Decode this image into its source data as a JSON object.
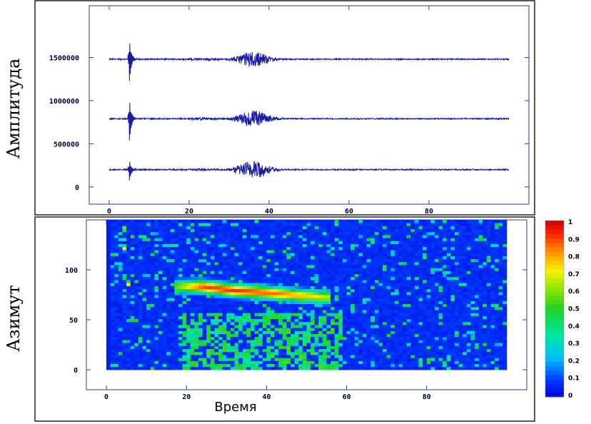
{
  "chart_data": [
    {
      "type": "line",
      "ylabel": "Амплитуда",
      "xlabel": "",
      "xlim": [
        -5,
        105
      ],
      "ylim": [
        -200000,
        2100000
      ],
      "xticks": [
        0,
        20,
        40,
        60,
        80
      ],
      "yticks": [
        0,
        500000,
        1000000,
        1500000
      ],
      "grid": false,
      "series_color": "#1a1aa6",
      "series": [
        {
          "baseline": 1480000,
          "first_arrival_time": 5,
          "first_arrival_peak": 320000,
          "burst_center": 36,
          "burst_amplitude": 90000
        },
        {
          "baseline": 790000,
          "first_arrival_time": 5,
          "first_arrival_peak": 330000,
          "burst_center": 36,
          "burst_amplitude": 100000
        },
        {
          "baseline": 200000,
          "first_arrival_time": 5,
          "first_arrival_peak": 160000,
          "burst_center": 36,
          "burst_amplitude": 110000
        }
      ],
      "time_range": [
        0,
        100
      ]
    },
    {
      "type": "heatmap",
      "xlabel": "Время",
      "ylabel": "Азимут",
      "xlim": [
        -5,
        105
      ],
      "ylim": [
        -20,
        150
      ],
      "xticks": [
        0,
        20,
        40,
        60,
        80
      ],
      "yticks": [
        0,
        50,
        100
      ],
      "value_range": [
        0,
        1
      ],
      "colorbar_ticks": [
        0,
        0.1,
        0.2,
        0.3,
        0.4,
        0.5,
        0.6,
        0.7,
        0.8,
        0.9,
        1
      ],
      "ridge": [
        {
          "time": 17,
          "azimuth": 82,
          "value": 0.55
        },
        {
          "time": 24,
          "azimuth": 82,
          "value": 0.9
        },
        {
          "time": 32,
          "azimuth": 78,
          "value": 0.92
        },
        {
          "time": 40,
          "azimuth": 76,
          "value": 0.88
        },
        {
          "time": 48,
          "azimuth": 73,
          "value": 0.8
        },
        {
          "time": 56,
          "azimuth": 71,
          "value": 0.65
        }
      ],
      "hotspots": [
        {
          "time": 5,
          "azimuth": 85,
          "value": 0.85
        },
        {
          "time": 4,
          "azimuth": 140,
          "value": 0.7
        },
        {
          "time": 4,
          "azimuth": 120,
          "value": 0.7
        }
      ],
      "grid": false
    }
  ]
}
